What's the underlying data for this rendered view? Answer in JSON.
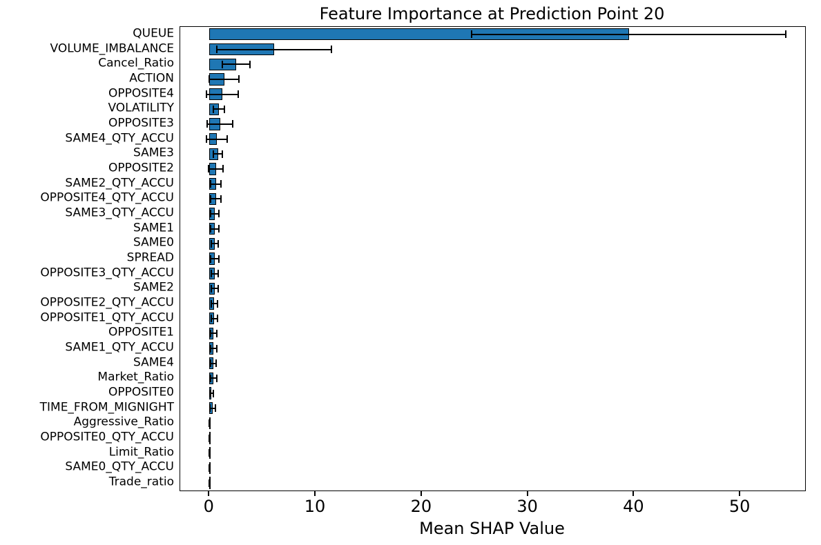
{
  "chart_data": {
    "type": "bar",
    "orientation": "horizontal",
    "title": "Feature Importance at Prediction Point 20",
    "xlabel": "Mean SHAP Value",
    "ylabel": "",
    "bar_color": "#1f77b4",
    "bar_edge_color": "#000000",
    "error_bar_color": "#000000",
    "xlim": [
      -2.75,
      56.1
    ],
    "xticks": [
      0,
      10,
      20,
      30,
      40,
      50
    ],
    "grid": false,
    "legend": "none",
    "categories": [
      "QUEUE",
      "VOLUME_IMBALANCE",
      "Cancel_Ratio",
      "ACTION",
      "OPPOSITE4",
      "VOLATILITY",
      "OPPOSITE3",
      "SAME4_QTY_ACCU",
      "SAME3",
      "OPPOSITE2",
      "SAME2_QTY_ACCU",
      "OPPOSITE4_QTY_ACCU",
      "SAME3_QTY_ACCU",
      "SAME1",
      "SAME0",
      "SPREAD",
      "OPPOSITE3_QTY_ACCU",
      "SAME2",
      "OPPOSITE2_QTY_ACCU",
      "OPPOSITE1_QTY_ACCU",
      "OPPOSITE1",
      "SAME1_QTY_ACCU",
      "SAME4",
      "Market_Ratio",
      "OPPOSITE0",
      "TIME_FROM_MIGNIGHT",
      "Aggressive_Ratio",
      "OPPOSITE0_QTY_ACCU",
      "Limit_Ratio",
      "SAME0_QTY_ACCU",
      "Trade_ratio"
    ],
    "values": [
      39.5,
      6.1,
      2.5,
      1.4,
      1.2,
      0.9,
      1.0,
      0.7,
      0.8,
      0.6,
      0.6,
      0.6,
      0.5,
      0.5,
      0.5,
      0.5,
      0.5,
      0.5,
      0.45,
      0.45,
      0.4,
      0.4,
      0.35,
      0.4,
      0.2,
      0.3,
      0.02,
      0.02,
      0.02,
      0.02,
      0.02
    ],
    "errors": [
      14.8,
      5.4,
      1.3,
      1.4,
      1.5,
      0.5,
      1.2,
      1.0,
      0.4,
      0.7,
      0.5,
      0.5,
      0.4,
      0.4,
      0.35,
      0.4,
      0.35,
      0.35,
      0.3,
      0.3,
      0.3,
      0.3,
      0.25,
      0.3,
      0.15,
      0.25,
      0.02,
      0.02,
      0.02,
      0.02,
      0.02
    ]
  }
}
